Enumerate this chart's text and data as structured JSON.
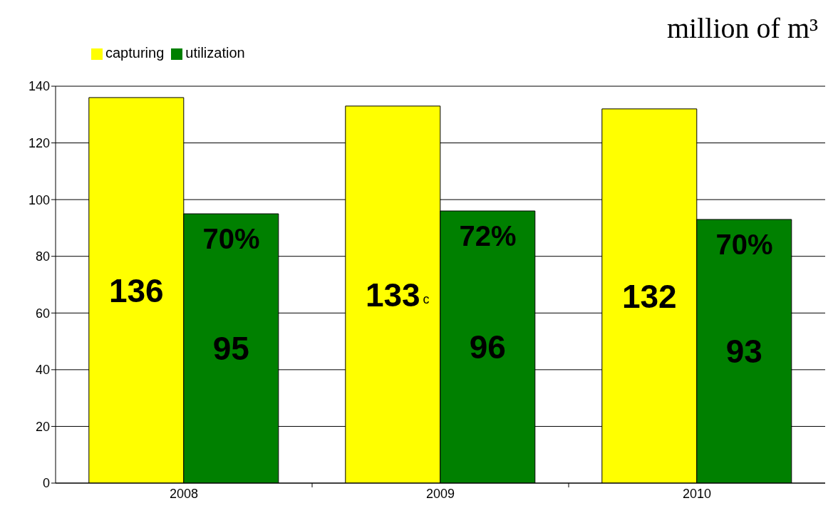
{
  "chart_data": {
    "type": "bar",
    "ylabel": "million of m³",
    "categories": [
      "2008",
      "2009",
      "2010"
    ],
    "series": [
      {
        "name": "capturing",
        "color": "#ffff00",
        "values": [
          136,
          133,
          132
        ]
      },
      {
        "name": "utilization",
        "color": "#008000",
        "values": [
          95,
          96,
          93
        ]
      }
    ],
    "ylim": [
      0,
      140
    ],
    "yticks": [
      0,
      20,
      40,
      60,
      80,
      100,
      120,
      140
    ],
    "grid": "y",
    "legend": "top left",
    "data_labels": true,
    "annotations": [
      {
        "text": "70%",
        "x": "2008",
        "y": 82
      },
      {
        "text": "72%",
        "x": "2009",
        "y": 83
      },
      {
        "text": "70%",
        "x": "2010",
        "y": 80
      },
      {
        "text": "c",
        "x": "2009",
        "y": 62
      }
    ]
  }
}
